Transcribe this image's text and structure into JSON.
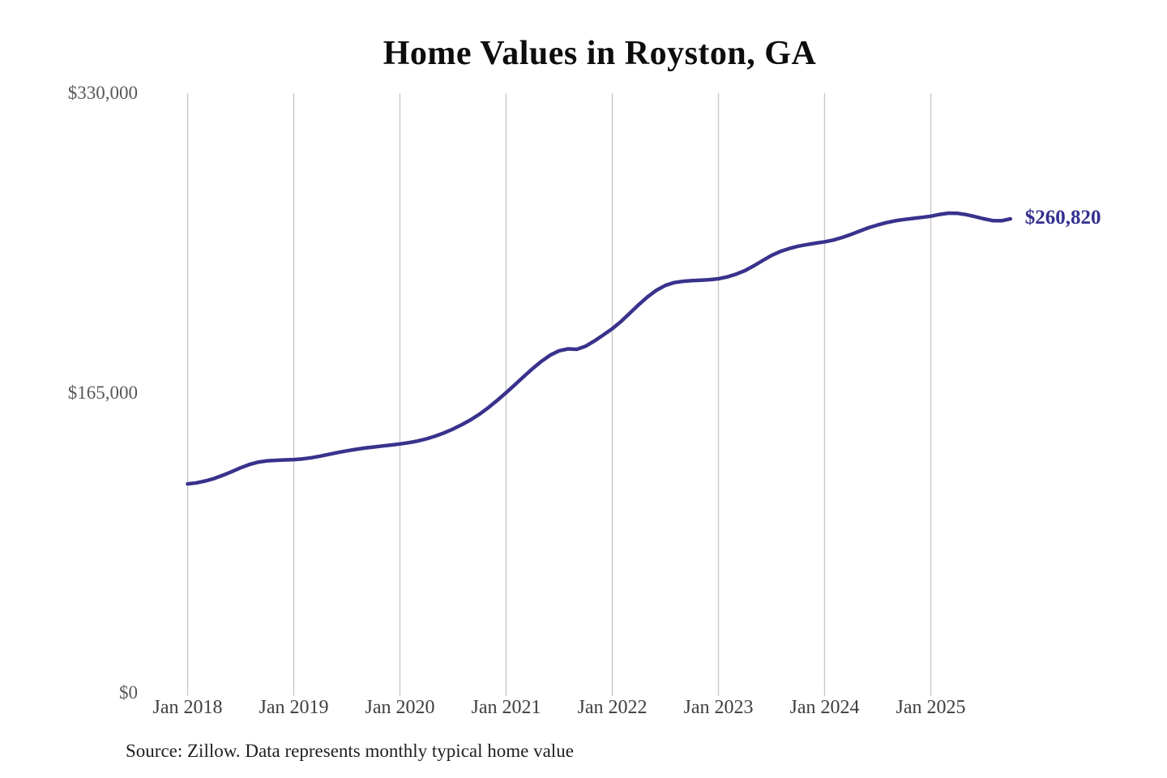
{
  "chart": {
    "title": "Home Values in Royston, GA",
    "end_label": "$260,820",
    "source": "Source: Zillow. Data represents monthly typical home value",
    "colors": {
      "line": "#39328c",
      "end_label": "#33308f",
      "grid": "#c9c9c9"
    }
  },
  "chart_data": {
    "type": "line",
    "title": "Home Values in Royston, GA",
    "xlabel": "",
    "ylabel": "",
    "ylim": [
      0,
      330000
    ],
    "grid": "vertical-only",
    "legend": "none",
    "x_start": "2018-01",
    "x_end": "2025-10",
    "x_cadence": "monthly",
    "x_tick_labels": [
      "Jan 2018",
      "Jan 2019",
      "Jan 2020",
      "Jan 2021",
      "Jan 2022",
      "Jan 2023",
      "Jan 2024",
      "Jan 2025"
    ],
    "y_ticks": [
      {
        "label": "$0",
        "value": 0
      },
      {
        "label": "$165,000",
        "value": 165000
      },
      {
        "label": "$330,000",
        "value": 330000
      }
    ],
    "series": [
      {
        "name": "Monthly typical home value",
        "latest_value": 260820,
        "values": [
          115000,
          115600,
          116600,
          118000,
          119800,
          121800,
          123900,
          125700,
          127000,
          127700,
          128000,
          128200,
          128400,
          128800,
          129400,
          130300,
          131300,
          132300,
          133200,
          134000,
          134700,
          135300,
          135900,
          136400,
          137000,
          137700,
          138600,
          139800,
          141300,
          143100,
          145200,
          147600,
          150300,
          153400,
          157000,
          161000,
          165200,
          169600,
          174100,
          178500,
          182500,
          185900,
          188300,
          189300,
          189100,
          190800,
          193700,
          197000,
          200400,
          204400,
          209000,
          213700,
          218000,
          221600,
          224200,
          225800,
          226500,
          226900,
          227100,
          227400,
          227900,
          228900,
          230400,
          232400,
          235000,
          237900,
          240700,
          242900,
          244500,
          245800,
          246700,
          247500,
          248200,
          249200,
          250600,
          252300,
          254200,
          256000,
          257500,
          258800,
          259800,
          260500,
          261100,
          261700,
          262300,
          263300,
          264000,
          263900,
          263200,
          262100,
          260900,
          259900,
          259800,
          260820
        ]
      }
    ]
  }
}
